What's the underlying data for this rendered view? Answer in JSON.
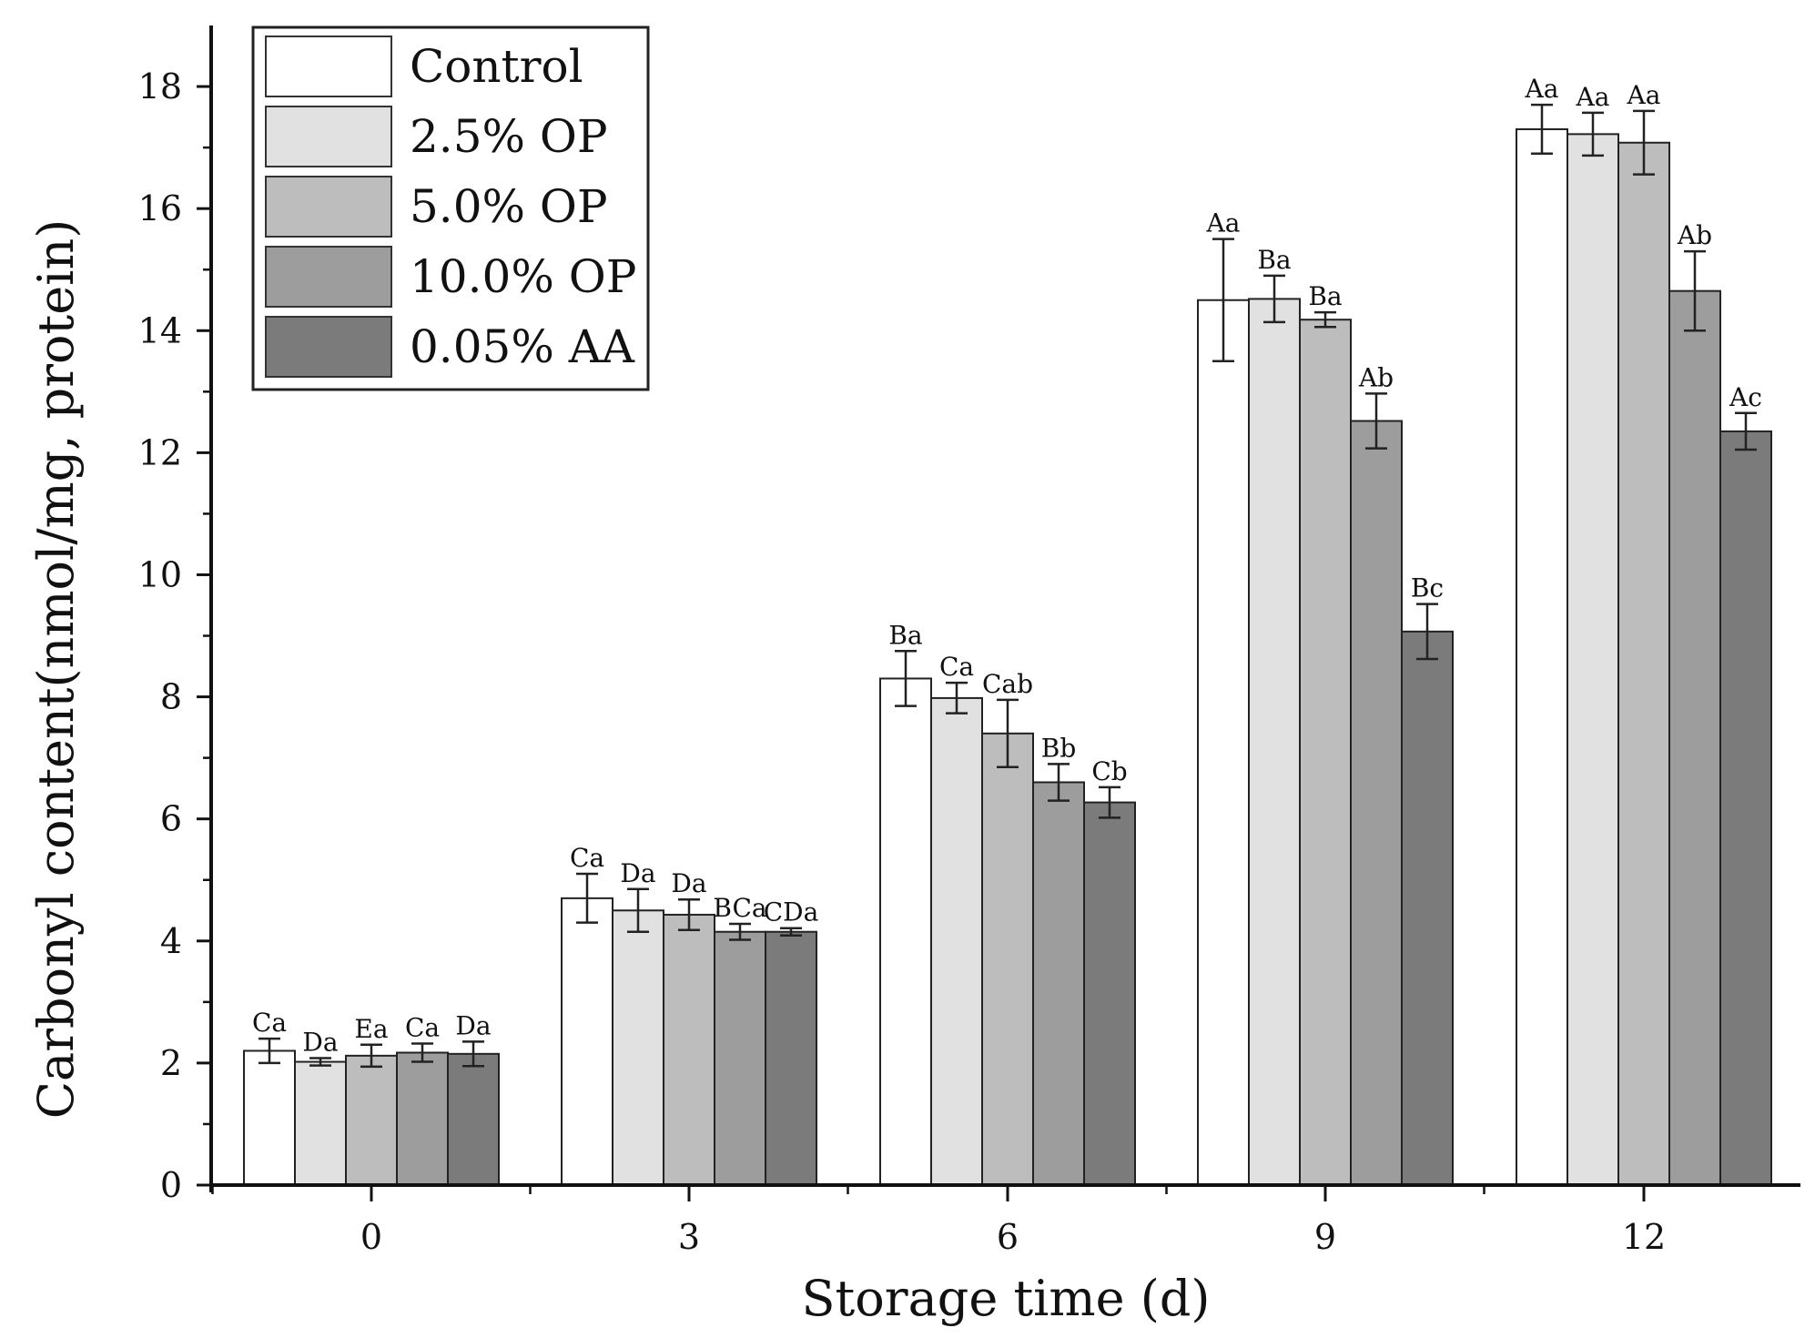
{
  "chart_data": {
    "type": "bar",
    "title": "",
    "xlabel": "Storage time (d)",
    "ylabel": "Carbonyl content(nmol/mg, protein)",
    "ylim": [
      0,
      19
    ],
    "yticks": [
      0,
      2,
      4,
      6,
      8,
      10,
      12,
      14,
      16,
      18
    ],
    "categories": [
      "0",
      "3",
      "6",
      "9",
      "12"
    ],
    "legend_position": "top-left",
    "series": [
      {
        "name": "Control",
        "color": "#ffffff",
        "values": [
          2.2,
          4.7,
          8.3,
          14.5,
          17.3
        ],
        "errors": [
          0.2,
          0.4,
          0.45,
          1.0,
          0.4
        ],
        "letters": [
          "Ca",
          "Ca",
          "Ba",
          "Aa",
          "Aa"
        ]
      },
      {
        "name": "2.5%  OP",
        "color": "#e1e1e1",
        "values": [
          2.02,
          4.5,
          7.98,
          14.52,
          17.22
        ],
        "errors": [
          0.06,
          0.35,
          0.25,
          0.38,
          0.35
        ],
        "letters": [
          "Da",
          "Da",
          "Ca",
          "Ba",
          "Aa"
        ]
      },
      {
        "name": "5.0%  OP",
        "color": "#bdbdbd",
        "values": [
          2.12,
          4.43,
          7.4,
          14.18,
          17.08
        ],
        "errors": [
          0.18,
          0.25,
          0.55,
          0.12,
          0.52
        ],
        "letters": [
          "Ea",
          "Da",
          "Cab",
          "Ba",
          "Aa"
        ]
      },
      {
        "name": "10.0% OP",
        "color": "#9d9d9d",
        "values": [
          2.17,
          4.15,
          6.6,
          12.52,
          14.65
        ],
        "errors": [
          0.15,
          0.13,
          0.3,
          0.45,
          0.65
        ],
        "letters": [
          "Ca",
          "BCa",
          "Bb",
          "Ab",
          "Ab"
        ]
      },
      {
        "name": "0.05% AA",
        "color": "#7b7b7b",
        "values": [
          2.15,
          4.15,
          6.27,
          9.07,
          12.35
        ],
        "errors": [
          0.2,
          0.06,
          0.25,
          0.45,
          0.3
        ],
        "letters": [
          "Da",
          "CDa",
          "Cb",
          "Bc",
          "Ac"
        ]
      }
    ]
  }
}
